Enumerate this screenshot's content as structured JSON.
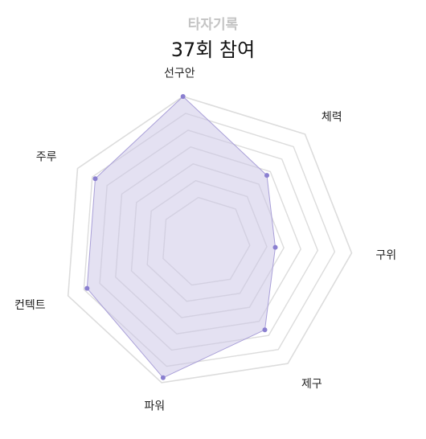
{
  "header": {
    "subtitle": "타자기록",
    "title": "37회 참여"
  },
  "chart_data": {
    "type": "radar",
    "axes": [
      "주루",
      "선구안",
      "체력",
      "구위",
      "제구",
      "파워",
      "컨텍트"
    ],
    "values": [
      80,
      100,
      45,
      25,
      60,
      95,
      80
    ],
    "range": [
      0,
      100
    ],
    "rings": 7,
    "grid": true,
    "colors": {
      "fill": "#c9c3e6",
      "stroke": "#a99fd8",
      "point": "#8a7fd0",
      "grid": "#dcdcdc"
    }
  }
}
